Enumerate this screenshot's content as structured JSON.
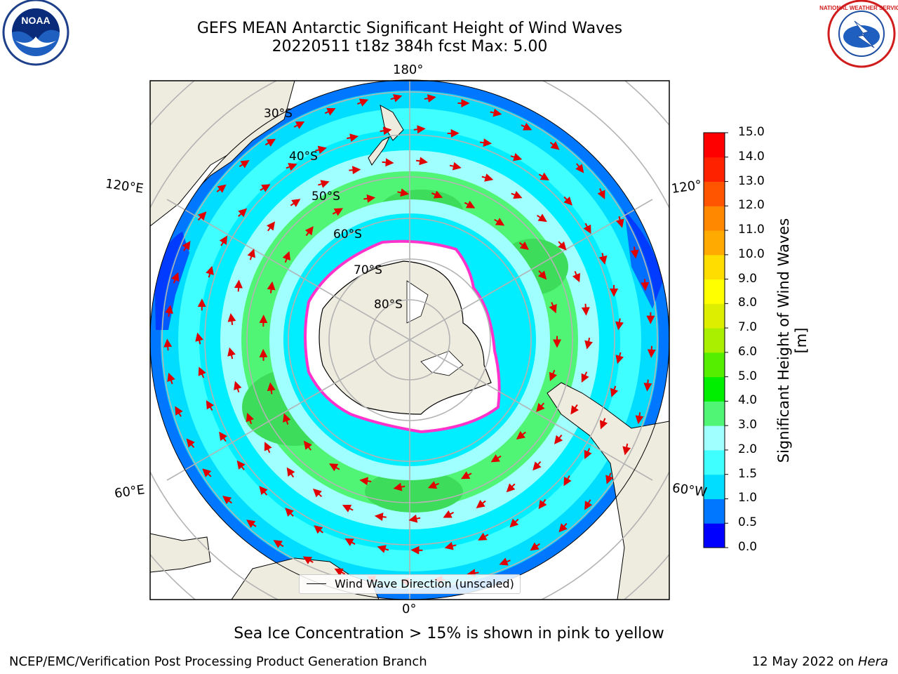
{
  "title": {
    "line1": "GEFS MEAN Antarctic Significant Height of Wind Waves",
    "line2": "20220511 t18z 384h fcst   Max: 5.00"
  },
  "map": {
    "projection": "south-polar-stereographic",
    "lon_labels": {
      "top": "180°",
      "left_upper": "120°E",
      "right_upper": "120°",
      "left_lower": "60°E",
      "right_lower": "60°W",
      "bottom": "0°"
    },
    "lat_labels": [
      "30°S",
      "40°S",
      "50°S",
      "60°S",
      "70°S",
      "80°S"
    ],
    "legend": {
      "label": "Wind Wave Direction (unscaled)"
    },
    "arrow_color": "#e00000",
    "land_color": "#eeecdf",
    "ice_color": "#ffffff",
    "ice_edge_colors": [
      "#ff33cc",
      "#ffcc00"
    ]
  },
  "colorbar": {
    "label": "Significant Height of Wind Waves [m]",
    "ticks": [
      "0.0",
      "0.5",
      "1.0",
      "1.5",
      "2.0",
      "3.0",
      "4.0",
      "5.0",
      "6.0",
      "7.0",
      "8.0",
      "9.0",
      "10.0",
      "11.0",
      "12.0",
      "13.0",
      "14.0",
      "15.0"
    ],
    "colors": [
      "#0000ff",
      "#0077ff",
      "#00ddff",
      "#40ffff",
      "#a0ffff",
      "#50f575",
      "#00ee00",
      "#55ee00",
      "#aaee00",
      "#ddee00",
      "#ffff00",
      "#ffdd00",
      "#ffaa00",
      "#ff8800",
      "#ff5500",
      "#ff2200",
      "#ff0000"
    ]
  },
  "logos": {
    "noaa": "NOAA",
    "nws": "NATIONAL WEATHER SERVICE"
  },
  "caption": "Sea Ice Concentration > 15% is shown in pink to yellow",
  "footer": {
    "left": "NCEP/EMC/Verification Post Processing Product Generation Branch",
    "right_date": "12 May 2022 on ",
    "right_host": "Hera"
  }
}
